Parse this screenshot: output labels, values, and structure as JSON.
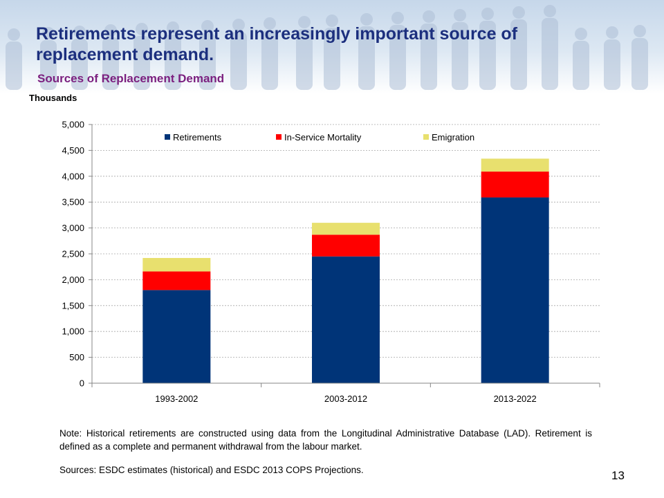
{
  "slide": {
    "title": "Retirements represent an increasingly  important source of replacement demand.",
    "subtitle": "Sources of Replacement Demand",
    "page_number": "13"
  },
  "colors": {
    "title": "#1c2f7e",
    "subtitle": "#7b1f7f",
    "retirements": "#003478",
    "in_service_mortality": "#ff0000",
    "emigration": "#e8e06e"
  },
  "chart_data": {
    "type": "bar",
    "stacked": true,
    "ylabel": "Thousands",
    "xlabel": "",
    "categories": [
      "1993-2002",
      "2003-2012",
      "2013-2022"
    ],
    "series": [
      {
        "name": "Retirements",
        "values": [
          1800,
          2450,
          3590
        ],
        "color": "#003478"
      },
      {
        "name": "In-Service Mortality",
        "values": [
          360,
          420,
          500
        ],
        "color": "#ff0000"
      },
      {
        "name": "Emigration",
        "values": [
          260,
          230,
          250
        ],
        "color": "#e8e06e"
      }
    ],
    "ylim": [
      0,
      5000
    ],
    "yticks": [
      0,
      500,
      1000,
      1500,
      2000,
      2500,
      3000,
      3500,
      4000,
      4500,
      5000
    ],
    "ytick_labels": [
      "0",
      "500",
      "1,000",
      "1,500",
      "2,000",
      "2,500",
      "3,000",
      "3,500",
      "4,000",
      "4,500",
      "5,000"
    ],
    "grid": true,
    "legend_position": "top"
  },
  "footer": {
    "note": "Note: Historical retirements are constructed using data from the Longitudinal Administrative Database (LAD). Retirement is defined as a complete and permanent withdrawal from the labour market.",
    "sources": "Sources: ESDC estimates (historical) and ESDC 2013 COPS Projections."
  }
}
